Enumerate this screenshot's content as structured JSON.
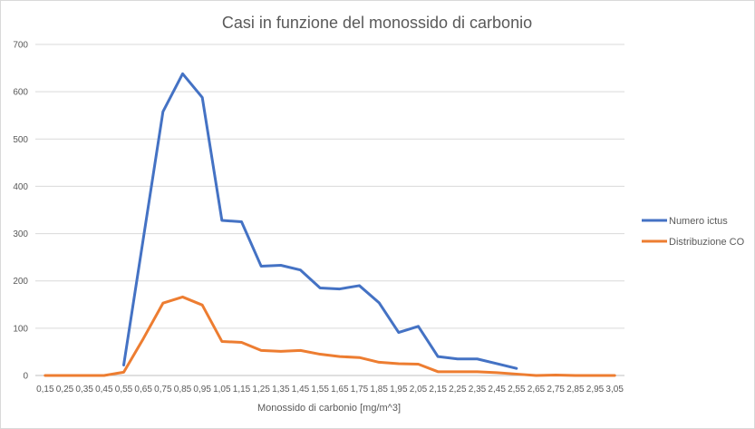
{
  "chart_data": {
    "type": "line",
    "title": "Casi in funzione del monossido di carbonio",
    "xlabel": "Monossido di carbonio [mg/m^3]",
    "ylabel": "",
    "ylim": [
      0,
      700
    ],
    "yticks": [
      0,
      100,
      200,
      300,
      400,
      500,
      600,
      700
    ],
    "grid": true,
    "legend_position": "right",
    "categories": [
      "0,15",
      "0,25",
      "0,35",
      "0,45",
      "0,55",
      "0,65",
      "0,75",
      "0,85",
      "0,95",
      "1,05",
      "1,15",
      "1,25",
      "1,35",
      "1,45",
      "1,55",
      "1,65",
      "1,75",
      "1,85",
      "1,95",
      "2,05",
      "2,15",
      "2,25",
      "2,35",
      "2,45",
      "2,55",
      "2,65",
      "2,75",
      "2,85",
      "2,95",
      "3,05"
    ],
    "series": [
      {
        "name": "Numero ictus",
        "color": "#4472c4",
        "values": [
          null,
          null,
          null,
          null,
          22,
          290,
          558,
          638,
          588,
          328,
          325,
          231,
          233,
          223,
          185,
          183,
          190,
          154,
          91,
          104,
          40,
          35,
          35,
          25,
          15,
          null,
          null,
          null,
          null,
          null
        ]
      },
      {
        "name": "Distribuzione CO",
        "color": "#ed7d31",
        "values": [
          0,
          0,
          0,
          0,
          7,
          78,
          153,
          166,
          149,
          72,
          70,
          53,
          51,
          53,
          45,
          40,
          38,
          28,
          25,
          24,
          8,
          8,
          8,
          6,
          3,
          0,
          1,
          0,
          0,
          0
        ]
      }
    ]
  }
}
